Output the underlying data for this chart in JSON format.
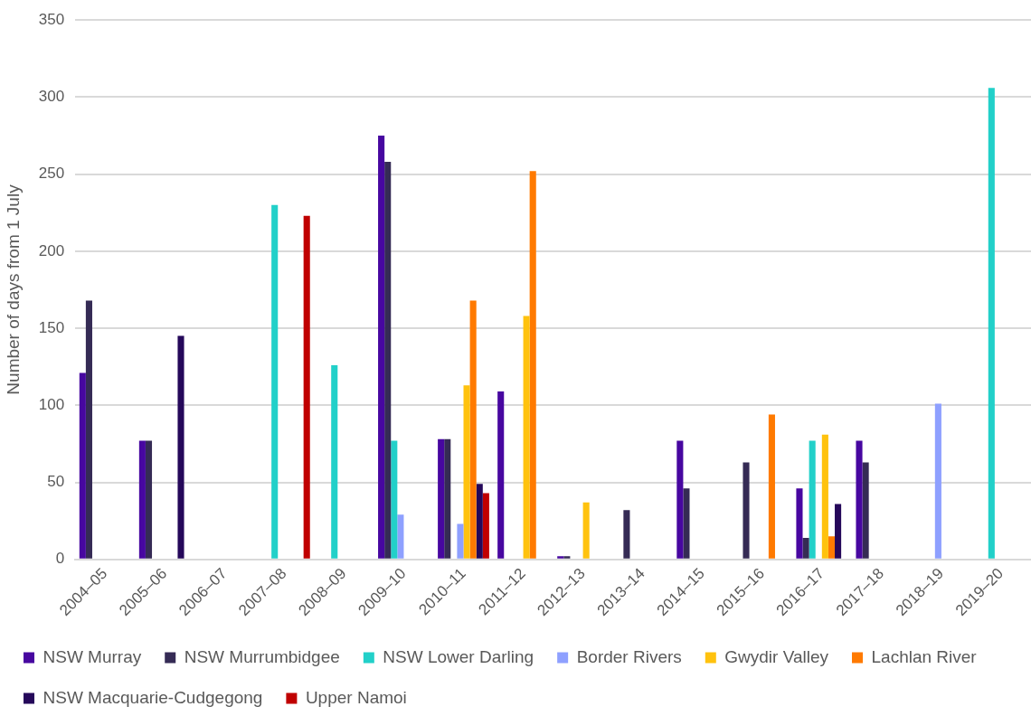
{
  "chart_data": {
    "type": "bar",
    "ylabel": "Number of days from 1 July",
    "categories": [
      "2004–05",
      "2005–06",
      "2006–07",
      "2007–08",
      "2008–09",
      "2009–10",
      "2010–11",
      "2011–12",
      "2012–13",
      "2013–14",
      "2014–15",
      "2015–16",
      "2016–17",
      "2017–18",
      "2018–19",
      "2019–20"
    ],
    "series": [
      {
        "name": "NSW Murray",
        "color": "#4707a0",
        "values": [
          121,
          77,
          0,
          0,
          0,
          275,
          78,
          109,
          2,
          0,
          77,
          0,
          46,
          77,
          0,
          0
        ]
      },
      {
        "name": "NSW Murrumbidgee",
        "color": "#352b55",
        "values": [
          168,
          77,
          0,
          0,
          0,
          258,
          78,
          0,
          2,
          32,
          46,
          63,
          14,
          63,
          0,
          0
        ]
      },
      {
        "name": "NSW Lower Darling",
        "color": "#22d0c9",
        "values": [
          0,
          0,
          0,
          230,
          126,
          77,
          0,
          0,
          0,
          0,
          0,
          0,
          77,
          0,
          0,
          306
        ]
      },
      {
        "name": "Border Rivers",
        "color": "#8ea0ff",
        "values": [
          0,
          0,
          0,
          0,
          0,
          29,
          23,
          0,
          0,
          0,
          0,
          0,
          0,
          0,
          101,
          0
        ]
      },
      {
        "name": "Gwydir Valley",
        "color": "#ffc20e",
        "values": [
          0,
          0,
          0,
          0,
          0,
          0,
          113,
          158,
          37,
          0,
          0,
          0,
          81,
          0,
          0,
          0
        ]
      },
      {
        "name": "Lachlan River",
        "color": "#ff7a00",
        "values": [
          0,
          0,
          0,
          0,
          0,
          0,
          168,
          252,
          0,
          0,
          0,
          94,
          15,
          0,
          0,
          0
        ]
      },
      {
        "name": "NSW Macquarie-Cudgegong",
        "color": "#25085a",
        "values": [
          0,
          145,
          0,
          0,
          0,
          0,
          49,
          0,
          0,
          0,
          0,
          0,
          36,
          0,
          0,
          0
        ]
      },
      {
        "name": "Upper Namoi",
        "color": "#c00000",
        "values": [
          0,
          0,
          0,
          223,
          0,
          0,
          43,
          0,
          0,
          0,
          0,
          0,
          0,
          0,
          0,
          0
        ]
      }
    ],
    "ylim": [
      0,
      350
    ],
    "yticks": [
      0,
      50,
      100,
      150,
      200,
      250,
      300,
      350
    ],
    "grid": "y",
    "legend": "bottom"
  }
}
